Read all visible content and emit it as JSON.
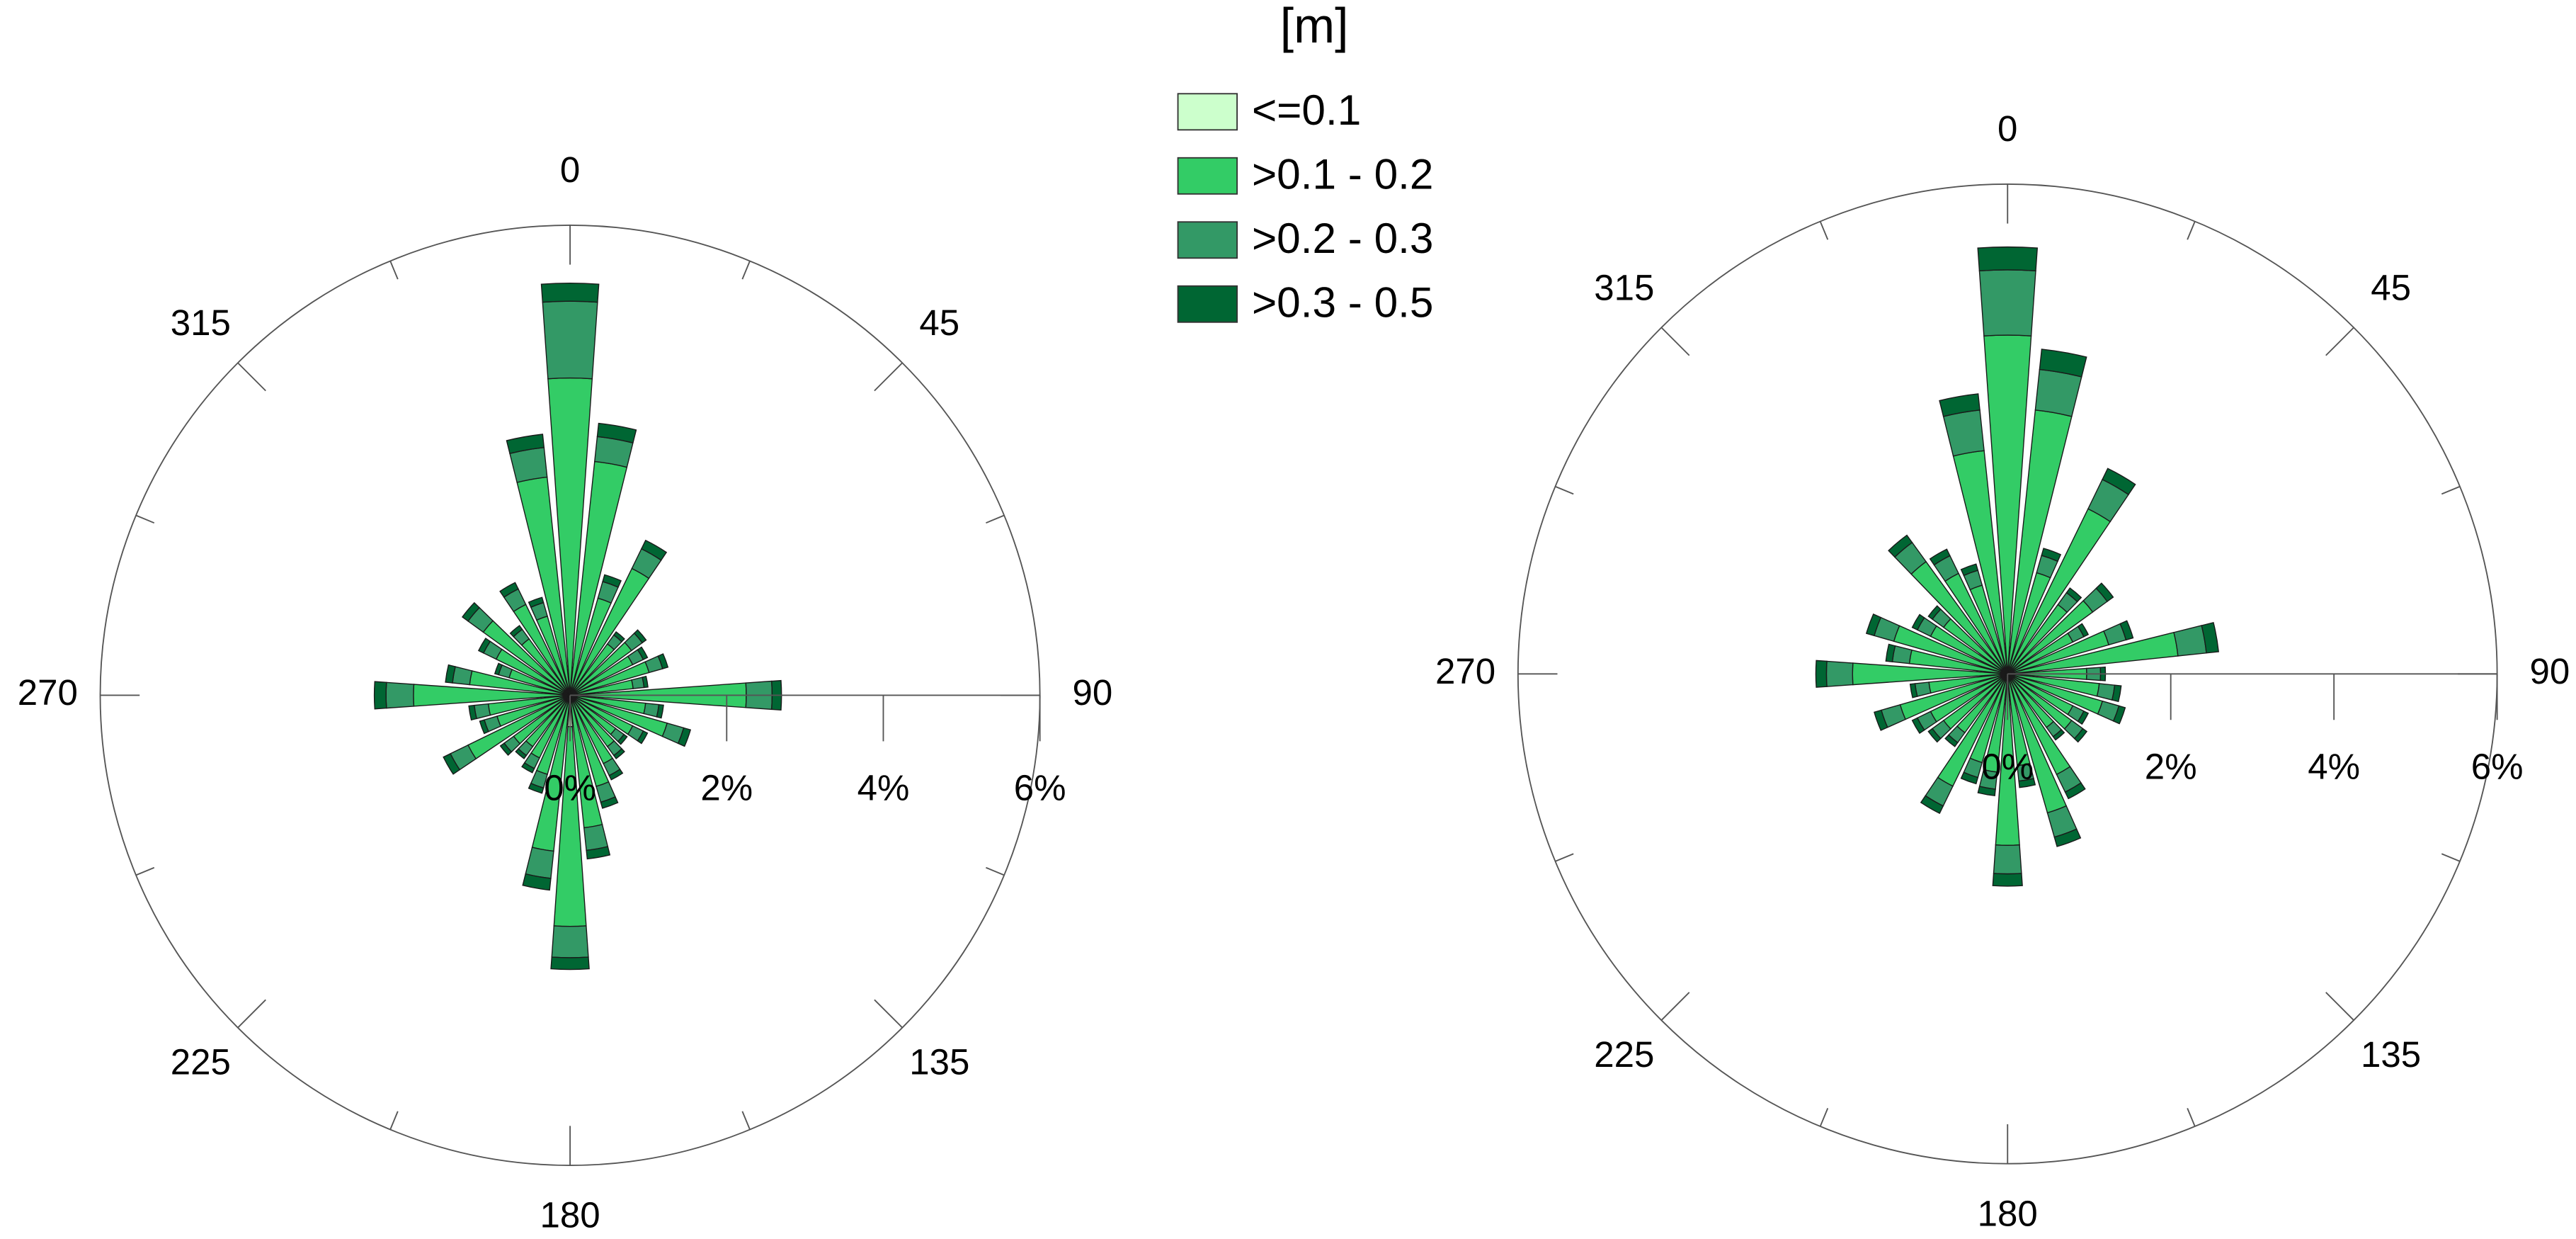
{
  "chart_data": [
    {
      "type": "windrose",
      "legend_title": "[m]",
      "x": [
        0,
        10,
        20,
        30,
        40,
        50,
        60,
        70,
        80,
        90,
        100,
        110,
        120,
        130,
        140,
        150,
        160,
        170,
        180,
        190,
        200,
        210,
        220,
        230,
        240,
        250,
        260,
        270,
        280,
        290,
        300,
        310,
        320,
        330,
        340,
        350
      ],
      "xlim": [
        0,
        360
      ],
      "xticks": [
        0,
        45,
        90,
        135,
        180,
        225,
        270,
        315
      ],
      "ylim": [
        0,
        6
      ],
      "yticks": [
        {
          "value": 0,
          "label": "0%"
        },
        {
          "value": 2,
          "label": "2%"
        },
        {
          "value": 4,
          "label": "4%"
        },
        {
          "value": 6,
          "label": "6%"
        }
      ],
      "series": [
        {
          "name": "<=0.1",
          "color": "#ccffcc",
          "values": [
            0.1,
            0.05,
            0.04,
            0.05,
            0.03,
            0.03,
            0.03,
            0.03,
            0.03,
            0.05,
            0.03,
            0.04,
            0.03,
            0.02,
            0.03,
            0.03,
            0.04,
            0.05,
            0.4,
            0.05,
            0.03,
            0.03,
            0.03,
            0.03,
            0.04,
            0.03,
            0.03,
            0.05,
            0.04,
            0.03,
            0.03,
            0.04,
            0.03,
            0.04,
            0.03,
            0.05
          ]
        },
        {
          "name": ">0.1 - 0.2",
          "color": "#33cc66",
          "values": [
            3.95,
            2.95,
            1.25,
            1.75,
            0.78,
            0.94,
            0.86,
            1.02,
            0.78,
            2.2,
            0.94,
            1.25,
            0.86,
            0.7,
            0.78,
            0.94,
            1.17,
            1.65,
            2.55,
            1.95,
            1.02,
            0.86,
            0.78,
            0.86,
            1.41,
            0.94,
            1.02,
            1.95,
            1.25,
            0.78,
            1.02,
            1.33,
            0.86,
            1.25,
            1.02,
            2.75
          ]
        },
        {
          "name": ">0.2 - 0.3",
          "color": "#339966",
          "values": [
            0.98,
            0.32,
            0.22,
            0.28,
            0.14,
            0.17,
            0.15,
            0.18,
            0.14,
            0.33,
            0.17,
            0.22,
            0.15,
            0.13,
            0.14,
            0.17,
            0.21,
            0.29,
            0.4,
            0.35,
            0.18,
            0.15,
            0.14,
            0.15,
            0.25,
            0.17,
            0.18,
            0.35,
            0.22,
            0.14,
            0.18,
            0.24,
            0.15,
            0.22,
            0.18,
            0.38
          ]
        },
        {
          "name": ">0.3 - 0.5",
          "color": "#006633",
          "values": [
            0.23,
            0.17,
            0.09,
            0.12,
            0.05,
            0.06,
            0.06,
            0.07,
            0.05,
            0.12,
            0.06,
            0.09,
            0.06,
            0.05,
            0.05,
            0.06,
            0.08,
            0.11,
            0.15,
            0.15,
            0.07,
            0.06,
            0.05,
            0.06,
            0.1,
            0.06,
            0.07,
            0.15,
            0.09,
            0.05,
            0.07,
            0.09,
            0.06,
            0.09,
            0.07,
            0.17
          ]
        }
      ]
    },
    {
      "type": "windrose",
      "x": [
        0,
        10,
        20,
        30,
        40,
        50,
        60,
        70,
        80,
        90,
        100,
        110,
        120,
        130,
        140,
        150,
        160,
        170,
        180,
        190,
        200,
        210,
        220,
        230,
        240,
        250,
        260,
        270,
        280,
        290,
        300,
        310,
        320,
        330,
        340,
        350
      ],
      "xlim": [
        0,
        360
      ],
      "xticks": [
        0,
        45,
        90,
        135,
        180,
        225,
        270,
        315
      ],
      "ylim": [
        0,
        6
      ],
      "yticks": [
        {
          "value": 0,
          "label": "0%"
        },
        {
          "value": 2,
          "label": "2%"
        },
        {
          "value": 4,
          "label": "4%"
        },
        {
          "value": 6,
          "label": "6%"
        }
      ],
      "series": [
        {
          "color": "#ccffcc",
          "values": [
            0.05,
            0.05,
            0.04,
            0.05,
            0.03,
            0.04,
            0.03,
            0.04,
            0.05,
            0.03,
            0.03,
            0.04,
            0.03,
            0.03,
            0.03,
            0.04,
            0.05,
            0.03,
            0.05,
            0.04,
            0.03,
            0.04,
            0.03,
            0.03,
            0.03,
            0.04,
            0.03,
            0.05,
            0.04,
            0.04,
            0.03,
            0.03,
            0.05,
            0.04,
            0.03,
            0.05
          ]
        },
        {
          "color": "#33cc66",
          "values": [
            4.1,
            3.2,
            1.25,
            2.2,
            1.02,
            1.25,
            0.86,
            1.25,
            2.05,
            0.94,
            1.1,
            1.17,
            0.86,
            0.94,
            0.78,
            1.33,
            1.72,
            1.1,
            2.05,
            1.17,
            1.1,
            1.49,
            0.86,
            0.94,
            1.02,
            1.33,
            0.94,
            1.85,
            1.17,
            1.41,
            1.02,
            0.94,
            1.65,
            1.33,
            1.1,
            2.7
          ]
        },
        {
          "color": "#339966",
          "values": [
            0.8,
            0.5,
            0.22,
            0.4,
            0.18,
            0.22,
            0.15,
            0.22,
            0.35,
            0.17,
            0.19,
            0.21,
            0.15,
            0.17,
            0.14,
            0.24,
            0.31,
            0.19,
            0.35,
            0.21,
            0.19,
            0.27,
            0.15,
            0.17,
            0.18,
            0.24,
            0.17,
            0.32,
            0.21,
            0.25,
            0.18,
            0.17,
            0.29,
            0.24,
            0.19,
            0.5
          ]
        },
        {
          "color": "#006633",
          "values": [
            0.28,
            0.25,
            0.09,
            0.15,
            0.07,
            0.09,
            0.06,
            0.09,
            0.15,
            0.06,
            0.08,
            0.08,
            0.06,
            0.06,
            0.05,
            0.09,
            0.12,
            0.08,
            0.15,
            0.08,
            0.08,
            0.1,
            0.06,
            0.06,
            0.07,
            0.09,
            0.06,
            0.13,
            0.08,
            0.1,
            0.07,
            0.06,
            0.11,
            0.09,
            0.08,
            0.2
          ]
        }
      ]
    }
  ]
}
